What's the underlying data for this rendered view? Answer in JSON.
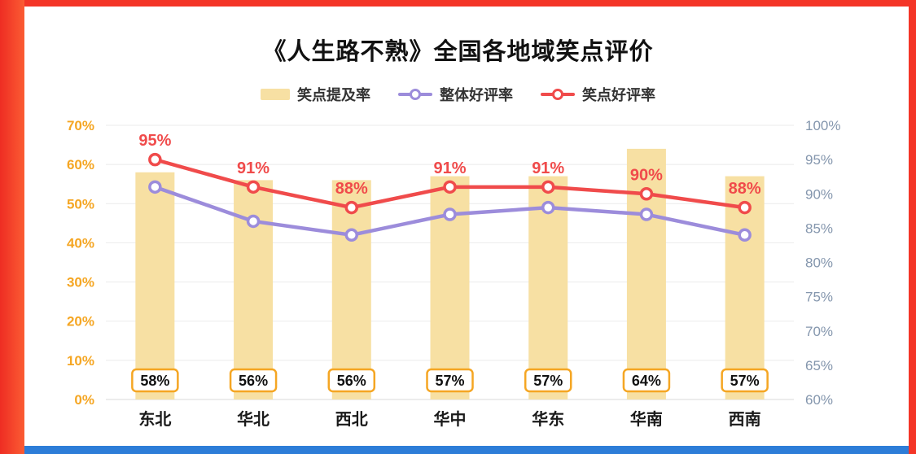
{
  "frame": {
    "accent_red": "#f43527",
    "accent_blue": "#2d7dd8"
  },
  "chart_data": {
    "type": "bar+line",
    "title": "《人生路不熟》全国各地域笑点评价",
    "categories": [
      "东北",
      "华北",
      "西北",
      "华中",
      "华东",
      "华南",
      "西南"
    ],
    "bar_series": {
      "name": "笑点提及率",
      "axis": "left",
      "values": [
        58,
        56,
        56,
        57,
        57,
        64,
        57
      ],
      "color": "#f7e0a3",
      "label_border_color": "#f5a623",
      "label_text_color": "#111111"
    },
    "line_series": [
      {
        "name": "整体好评率",
        "axis": "right",
        "values": [
          91,
          86,
          84,
          87,
          88,
          87,
          84
        ],
        "color": "#9c8cdb",
        "show_labels": false
      },
      {
        "name": "笑点好评率",
        "axis": "right",
        "values": [
          95,
          91,
          88,
          91,
          91,
          90,
          88
        ],
        "color": "#f04b4b",
        "show_labels": true
      }
    ],
    "left_axis": {
      "min": 0,
      "max": 70,
      "step": 10,
      "tick_suffix": "%",
      "color": "#f5a623"
    },
    "right_axis": {
      "min": 60,
      "max": 100,
      "step": 5,
      "tick_suffix": "%",
      "color": "#8496ad"
    },
    "grid": true,
    "legend_position": "top",
    "x_label_color": "#1a1a1a",
    "grid_color": "#ebebeb",
    "baseline_color": "#d9d9d9"
  }
}
